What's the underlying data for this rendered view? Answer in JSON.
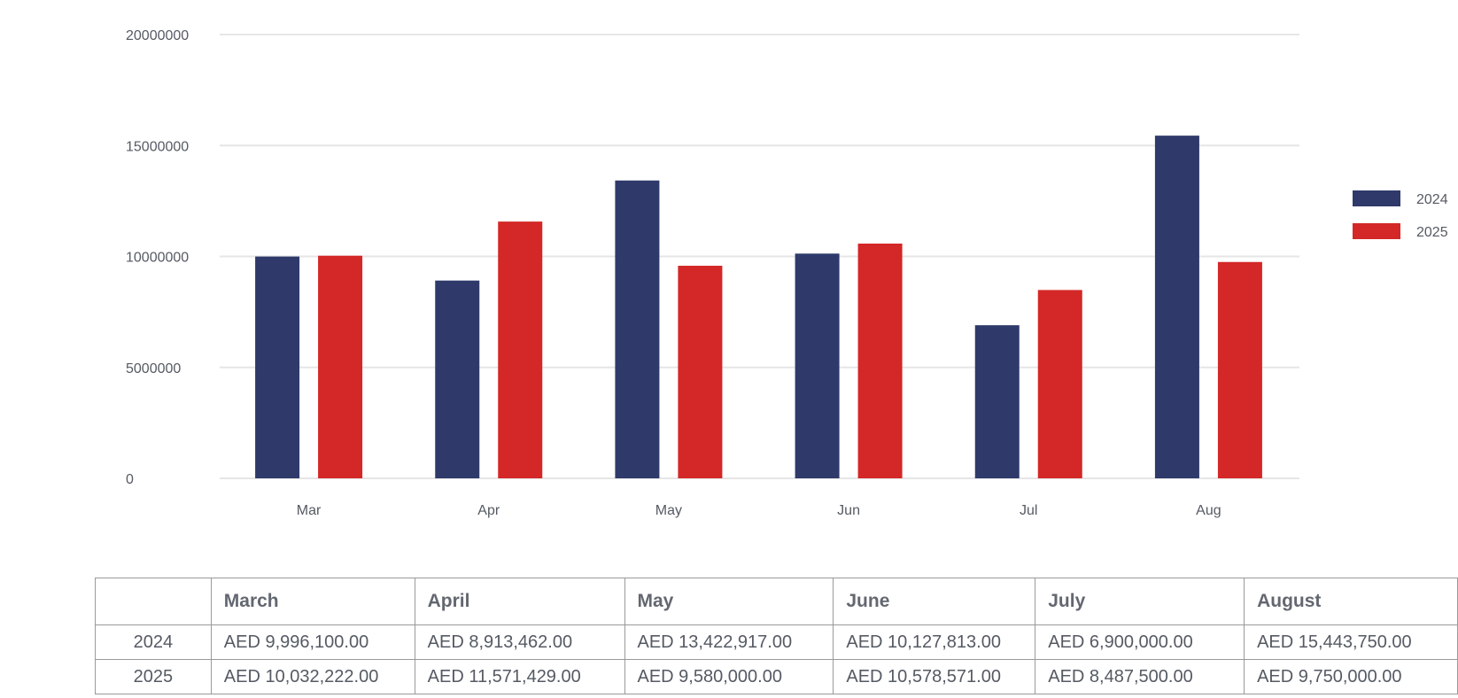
{
  "chart_data": {
    "type": "bar",
    "categories": [
      "Mar",
      "Apr",
      "May",
      "Jun",
      "Jul",
      "Aug"
    ],
    "series": [
      {
        "name": "2024",
        "color": "#2f3a6b",
        "values": [
          9996100,
          8913462,
          13422917,
          10127813,
          6900000,
          15443750
        ]
      },
      {
        "name": "2025",
        "color": "#d42727",
        "values": [
          10032222,
          11571429,
          9580000,
          10578571,
          8487500,
          9750000
        ]
      }
    ],
    "yticks": [
      "0",
      "5000000",
      "10000000",
      "15000000",
      "20000000"
    ],
    "ylim": [
      0,
      20000000
    ],
    "grid": true,
    "legend_position": "right"
  },
  "table": {
    "headers": [
      "",
      "March",
      "April",
      "May",
      "June",
      "July",
      "August"
    ],
    "rows": [
      {
        "year": "2024",
        "cells": [
          "AED 9,996,100.00",
          "AED 8,913,462.00",
          "AED 13,422,917.00",
          "AED 10,127,813.00",
          "AED 6,900,000.00",
          "AED 15,443,750.00"
        ]
      },
      {
        "year": "2025",
        "cells": [
          "AED 10,032,222.00",
          "AED 11,571,429.00",
          "AED 9,580,000.00",
          "AED 10,578,571.00",
          "AED 8,487,500.00",
          "AED 9,750,000.00"
        ]
      }
    ]
  }
}
